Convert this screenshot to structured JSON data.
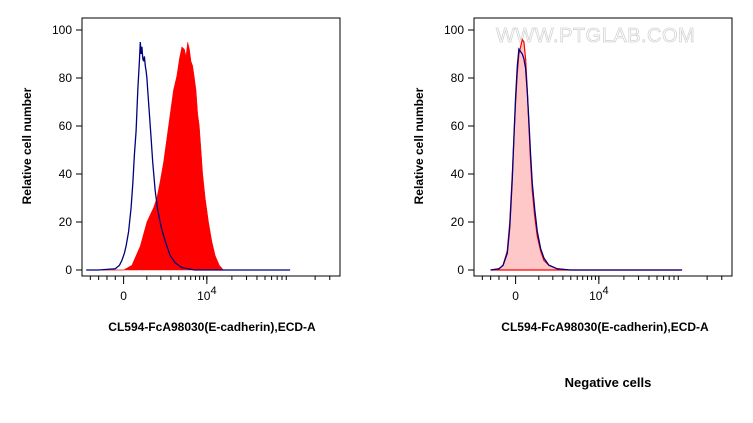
{
  "watermark": "WWW.PTGLAB.COM",
  "caption": "Negative cells",
  "colors": {
    "stained_fill": "#ff0000",
    "control_line": "#000080",
    "negative_fill": "#ffc8c8",
    "negative_line": "#ff0000"
  },
  "chart_data": [
    {
      "type": "area",
      "title": "",
      "xlabel": "CL594-FcA98030(E-cadherin),ECD-A",
      "ylabel": "Relative cell number",
      "xscale": "biexponential",
      "xlim": [
        -0.5,
        2.6
      ],
      "ylim": [
        0,
        100
      ],
      "yticks": [
        0,
        20,
        40,
        60,
        80,
        100
      ],
      "xticks": [
        {
          "value": 0,
          "label": "0",
          "sup": ""
        },
        {
          "value": 1,
          "label": "10",
          "sup": "4"
        }
      ],
      "grid": false,
      "series": [
        {
          "name": "",
          "kind": "filled",
          "color": "#ff0000",
          "x": [
            -0.26,
            0.0,
            0.1,
            0.15,
            0.2,
            0.24,
            0.28,
            0.32,
            0.36,
            0.4,
            0.44,
            0.48,
            0.52,
            0.56,
            0.6,
            0.64,
            0.67,
            0.7,
            0.73,
            0.75,
            0.77,
            0.79,
            0.81,
            0.83,
            0.85,
            0.87,
            0.89,
            0.91,
            0.93,
            0.95,
            0.98,
            1.02,
            1.06,
            1.1,
            1.15,
            1.2,
            1.3,
            1.4,
            2.0
          ],
          "y": [
            0,
            0,
            2,
            6,
            10,
            15,
            20,
            23,
            26,
            30,
            37,
            45,
            55,
            65,
            75,
            81,
            88,
            93,
            92,
            89,
            95,
            92,
            87,
            85,
            80,
            75,
            65,
            60,
            50,
            40,
            30,
            20,
            12,
            6,
            2,
            0,
            0,
            0,
            0
          ]
        },
        {
          "name": "",
          "kind": "line",
          "color": "#000080",
          "x": [
            -0.45,
            -0.3,
            -0.1,
            -0.05,
            -0.02,
            0.01,
            0.03,
            0.06,
            0.09,
            0.11,
            0.13,
            0.15,
            0.17,
            0.19,
            0.2,
            0.21,
            0.22,
            0.23,
            0.24,
            0.25,
            0.26,
            0.27,
            0.28,
            0.29,
            0.31,
            0.33,
            0.35,
            0.38,
            0.41,
            0.45,
            0.5,
            0.56,
            0.62,
            0.7,
            0.85,
            2.0
          ],
          "y": [
            0,
            0,
            0.5,
            2,
            4,
            7,
            10,
            16,
            26,
            36,
            48,
            58,
            75,
            87,
            95,
            90,
            93,
            88,
            87,
            89,
            85,
            83,
            80,
            75,
            65,
            55,
            45,
            33,
            25,
            18,
            12,
            6,
            3,
            1,
            0,
            0
          ]
        }
      ]
    },
    {
      "type": "area",
      "title": "",
      "xlabel": "CL594-FcA98030(E-cadherin),ECD-A",
      "ylabel": "Relative cell number",
      "xscale": "biexponential",
      "xlim": [
        -0.5,
        2.6
      ],
      "ylim": [
        0,
        100
      ],
      "yticks": [
        0,
        20,
        40,
        60,
        80,
        100
      ],
      "xticks": [
        {
          "value": 0,
          "label": "0",
          "sup": ""
        },
        {
          "value": 1,
          "label": "10",
          "sup": "4"
        }
      ],
      "grid": false,
      "series": [
        {
          "name": "",
          "kind": "filled",
          "color": "#ffc8c8",
          "stroke": "#ff0000",
          "x": [
            -0.3,
            -0.2,
            -0.15,
            -0.1,
            -0.07,
            -0.04,
            -0.02,
            0.0,
            0.02,
            0.04,
            0.06,
            0.08,
            0.1,
            0.12,
            0.14,
            0.16,
            0.18,
            0.2,
            0.23,
            0.26,
            0.3,
            0.34,
            0.4,
            0.5,
            0.65,
            2.0
          ],
          "y": [
            0,
            0.5,
            2,
            8,
            20,
            40,
            55,
            70,
            82,
            90,
            93,
            96,
            95,
            88,
            75,
            60,
            45,
            33,
            22,
            14,
            8,
            4,
            2,
            0.5,
            0,
            0
          ]
        },
        {
          "name": "",
          "kind": "line",
          "color": "#000080",
          "x": [
            -0.3,
            -0.2,
            -0.15,
            -0.1,
            -0.07,
            -0.04,
            -0.02,
            0.0,
            0.02,
            0.04,
            0.06,
            0.08,
            0.1,
            0.12,
            0.14,
            0.16,
            0.18,
            0.2,
            0.23,
            0.26,
            0.3,
            0.34,
            0.4,
            0.5,
            0.65,
            2.0
          ],
          "y": [
            0,
            0.5,
            2,
            7,
            18,
            38,
            55,
            72,
            85,
            92,
            91,
            90,
            88,
            84,
            74,
            62,
            48,
            36,
            25,
            16,
            9,
            5,
            2,
            0.5,
            0,
            0
          ]
        }
      ]
    }
  ]
}
